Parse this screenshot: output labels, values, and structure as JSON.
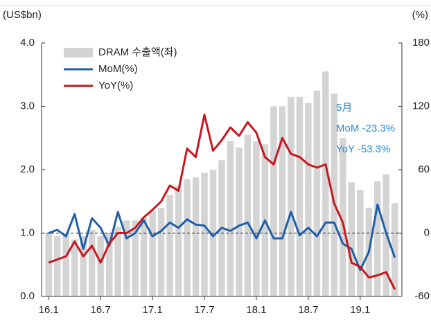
{
  "chart_data": {
    "type": "bar-line",
    "y_label": "(US$bn)",
    "y2_label": "(%)",
    "categories": [
      "16.1",
      null,
      null,
      null,
      null,
      null,
      "16.7",
      null,
      null,
      null,
      null,
      null,
      "17.1",
      null,
      null,
      null,
      null,
      null,
      "17.7",
      null,
      null,
      null,
      null,
      null,
      "18.1",
      null,
      null,
      null,
      null,
      null,
      "18.7",
      null,
      null,
      null,
      null,
      null,
      "19.1",
      null,
      null,
      null,
      null
    ],
    "ylim": [
      0,
      4
    ],
    "yticks": [
      {
        "value": 0,
        "label": "0.0"
      },
      {
        "value": 1,
        "label": "1.0"
      },
      {
        "value": 2,
        "label": "2.0"
      },
      {
        "value": 3,
        "label": "3.0"
      },
      {
        "value": 4,
        "label": "4.0"
      }
    ],
    "y2lim": [
      -60,
      180
    ],
    "y2ticks": [
      -60,
      0,
      60,
      120,
      180
    ],
    "reference_line": 0,
    "series": [
      {
        "name": "DRAM 수출액(좌)",
        "color": "#d4d4d4",
        "kind": "bar",
        "values": [
          1.0,
          0.95,
          1.0,
          0.9,
          0.95,
          1.05,
          0.95,
          1.0,
          1.1,
          1.2,
          1.2,
          1.25,
          1.35,
          1.4,
          1.6,
          1.75,
          1.85,
          1.88,
          1.95,
          2.0,
          2.15,
          2.45,
          2.35,
          2.55,
          2.45,
          2.4,
          3.0,
          3.0,
          3.15,
          3.15,
          3.05,
          3.25,
          3.55,
          3.2,
          2.5,
          1.8,
          1.68,
          1.4,
          1.82,
          1.93,
          1.47
        ]
      },
      {
        "name": "MoM(%)",
        "color": "#1f5fa8",
        "kind": "line",
        "axis": "y2",
        "values": [
          0,
          3,
          -3,
          18,
          -15,
          14,
          5,
          -12,
          20,
          -5,
          0,
          12,
          -3,
          2,
          10,
          5,
          13,
          8,
          7,
          -3,
          5,
          2,
          7,
          10,
          -5,
          12,
          -5,
          -5,
          20,
          -2,
          5,
          -3,
          10,
          10,
          -10,
          -15,
          -35,
          -18,
          27,
          0,
          -23.3
        ]
      },
      {
        "name": "YoY(%)",
        "color": "#c8161d",
        "kind": "line",
        "axis": "y2",
        "values": [
          -28,
          -25,
          -22,
          -8,
          -22,
          -12,
          -28,
          -10,
          0,
          0,
          5,
          15,
          22,
          30,
          45,
          40,
          80,
          72,
          112,
          78,
          88,
          100,
          92,
          105,
          95,
          72,
          65,
          90,
          75,
          72,
          65,
          62,
          65,
          28,
          10,
          -28,
          -32,
          -42,
          -40,
          -37,
          -53.3
        ]
      }
    ],
    "annotation": [
      "5月",
      "MoM -23.3%",
      "YoY -53.3%"
    ],
    "annotation_color": "#2a8ad4"
  }
}
